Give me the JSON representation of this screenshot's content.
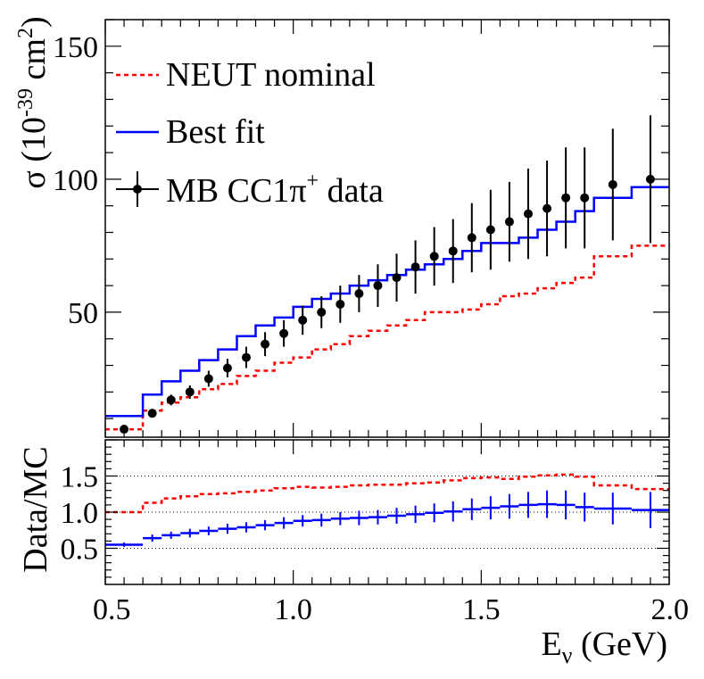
{
  "chart_data": [
    {
      "type": "line",
      "panel": "cross-section",
      "ylabel": "σ (10",
      "ylabel_exp": "-39",
      "ylabel_unit": " cm",
      "ylabel_unit_exp": "2",
      "ylabel_close": ")",
      "xlim": [
        0.5,
        2.0
      ],
      "ylim": [
        3,
        160
      ],
      "yticks": [
        50,
        100,
        150
      ],
      "ytick_labels": [
        "50",
        "100",
        "150"
      ],
      "legend_position": "top-left",
      "series": [
        {
          "name": "NEUT nominal",
          "kind": "step",
          "color": "#ff0000",
          "dashed": true,
          "edges": [
            0.5,
            0.6,
            0.65,
            0.7,
            0.75,
            0.8,
            0.85,
            0.9,
            0.95,
            1.0,
            1.05,
            1.1,
            1.15,
            1.2,
            1.25,
            1.3,
            1.35,
            1.4,
            1.45,
            1.5,
            1.55,
            1.6,
            1.65,
            1.7,
            1.75,
            1.8,
            1.9,
            2.0
          ],
          "values": [
            6,
            13,
            16,
            18,
            21,
            23,
            26,
            28,
            31,
            33,
            36,
            38,
            41,
            43,
            45,
            47,
            50,
            50,
            51,
            53,
            56,
            57,
            59,
            61,
            63,
            71,
            75
          ]
        },
        {
          "name": "Best fit",
          "kind": "step",
          "color": "#0000ff",
          "dashed": false,
          "edges": [
            0.5,
            0.6,
            0.65,
            0.7,
            0.75,
            0.8,
            0.85,
            0.9,
            0.95,
            1.0,
            1.05,
            1.1,
            1.15,
            1.2,
            1.25,
            1.3,
            1.35,
            1.4,
            1.45,
            1.5,
            1.55,
            1.6,
            1.65,
            1.7,
            1.75,
            1.8,
            1.9,
            2.0
          ],
          "values": [
            11,
            19,
            24,
            28,
            32,
            36,
            41,
            45,
            48,
            52,
            55,
            57,
            60,
            62,
            64,
            66,
            68,
            70,
            73,
            76,
            76,
            78,
            81,
            84,
            88,
            93,
            97
          ]
        },
        {
          "name": "MB CC1π",
          "name_sup": "+",
          "name_tail": " data",
          "kind": "points",
          "color": "#000000",
          "x": [
            0.55,
            0.625,
            0.675,
            0.725,
            0.775,
            0.825,
            0.875,
            0.925,
            0.975,
            1.025,
            1.075,
            1.125,
            1.175,
            1.225,
            1.275,
            1.325,
            1.375,
            1.425,
            1.475,
            1.525,
            1.575,
            1.625,
            1.675,
            1.725,
            1.775,
            1.85,
            1.95
          ],
          "y": [
            6,
            12,
            17,
            20,
            25,
            29,
            33,
            38,
            42,
            47,
            50,
            53,
            57,
            60,
            63,
            67,
            71,
            73,
            78,
            81,
            84,
            87,
            89,
            93,
            93,
            98,
            100
          ],
          "yerr": [
            0.5,
            1.5,
            2,
            2.5,
            3,
            3.5,
            4,
            4.5,
            5,
            5.5,
            6,
            7,
            7,
            8,
            9,
            10,
            11,
            12,
            13,
            15,
            15,
            17,
            18,
            19,
            19,
            21,
            24
          ]
        }
      ]
    },
    {
      "type": "line",
      "panel": "ratio",
      "xlabel": "E",
      "xlabel_sub": "ν",
      "xlabel_unit": " (GeV)",
      "ylabel": "Data/MC",
      "xlim": [
        0.5,
        2.0
      ],
      "ylim": [
        0.0,
        2.0
      ],
      "xticks": [
        0.5,
        1.0,
        1.5,
        2.0
      ],
      "xtick_labels": [
        "0.5",
        "1.0",
        "1.5",
        "2.0"
      ],
      "yticks": [
        0.5,
        1.0,
        1.5
      ],
      "ytick_labels": [
        "0.5",
        "1.0",
        "1.5"
      ],
      "reference_lines": [
        0.5,
        1.0,
        1.5
      ],
      "series": [
        {
          "name": "NEUT nominal",
          "kind": "step",
          "color": "#ff0000",
          "dashed": true,
          "edges": [
            0.5,
            0.6,
            0.65,
            0.7,
            0.75,
            0.8,
            0.85,
            0.9,
            0.95,
            1.0,
            1.05,
            1.1,
            1.15,
            1.2,
            1.25,
            1.3,
            1.35,
            1.4,
            1.45,
            1.5,
            1.55,
            1.6,
            1.65,
            1.7,
            1.75,
            1.8,
            1.9,
            2.0
          ],
          "values": [
            1.0,
            1.13,
            1.19,
            1.22,
            1.25,
            1.26,
            1.28,
            1.3,
            1.33,
            1.35,
            1.34,
            1.35,
            1.37,
            1.38,
            1.38,
            1.4,
            1.41,
            1.44,
            1.47,
            1.48,
            1.46,
            1.49,
            1.51,
            1.52,
            1.49,
            1.37,
            1.32
          ]
        },
        {
          "name": "Best fit",
          "kind": "points-step",
          "color": "#0000ff",
          "edges": [
            0.5,
            0.6,
            0.65,
            0.7,
            0.75,
            0.8,
            0.85,
            0.9,
            0.95,
            1.0,
            1.05,
            1.1,
            1.15,
            1.2,
            1.25,
            1.3,
            1.35,
            1.4,
            1.45,
            1.5,
            1.55,
            1.6,
            1.65,
            1.7,
            1.75,
            1.8,
            1.9,
            2.0
          ],
          "values": [
            0.55,
            0.64,
            0.68,
            0.71,
            0.74,
            0.77,
            0.79,
            0.82,
            0.85,
            0.88,
            0.89,
            0.91,
            0.92,
            0.93,
            0.95,
            0.97,
            0.99,
            1.01,
            1.04,
            1.06,
            1.08,
            1.1,
            1.11,
            1.1,
            1.07,
            1.05,
            1.03
          ],
          "yerr": [
            0.03,
            0.05,
            0.05,
            0.06,
            0.06,
            0.07,
            0.07,
            0.07,
            0.08,
            0.08,
            0.09,
            0.09,
            0.1,
            0.1,
            0.11,
            0.12,
            0.13,
            0.14,
            0.15,
            0.16,
            0.17,
            0.18,
            0.19,
            0.2,
            0.2,
            0.22,
            0.25
          ]
        }
      ]
    }
  ]
}
